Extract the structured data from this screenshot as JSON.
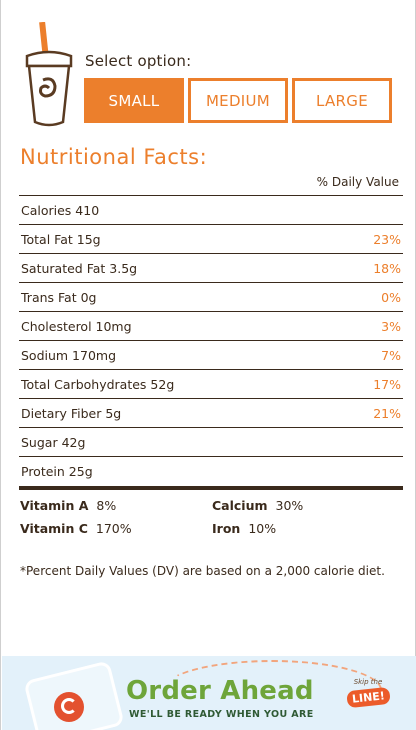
{
  "selector": {
    "label": "Select option:",
    "options": [
      "SMALL",
      "MEDIUM",
      "LARGE"
    ],
    "selected": "SMALL"
  },
  "nutrition": {
    "title": "Nutritional Facts:",
    "dv_header": "% Daily Value",
    "rows": [
      {
        "name": "Calories 410",
        "pct": ""
      },
      {
        "name": "Total Fat 15g",
        "pct": "23%"
      },
      {
        "name": "Saturated Fat 3.5g",
        "pct": "18%"
      },
      {
        "name": "Trans Fat 0g",
        "pct": "0%"
      },
      {
        "name": "Cholesterol 10mg",
        "pct": "3%"
      },
      {
        "name": "Sodium 170mg",
        "pct": "7%"
      },
      {
        "name": "Total Carbohydrates 52g",
        "pct": "17%"
      },
      {
        "name": "Dietary Fiber 5g",
        "pct": "21%"
      },
      {
        "name": "Sugar 42g",
        "pct": ""
      },
      {
        "name": "Protein 25g",
        "pct": ""
      }
    ],
    "vitamins": [
      {
        "label": "Vitamin A",
        "value": "8%"
      },
      {
        "label": "Calcium",
        "value": "30%"
      },
      {
        "label": "Vitamin C",
        "value": "170%"
      },
      {
        "label": "Iron",
        "value": "10%"
      }
    ],
    "footnote": "*Percent Daily Values (DV) are based on a 2,000 calorie diet."
  },
  "banner": {
    "title": "Order Ahead",
    "subtitle": "WE'LL BE READY WHEN YOU ARE",
    "skip_small": "Skip the",
    "skip_big": "LINE!"
  },
  "colors": {
    "accent": "#ec7f2c",
    "text": "#3a2a1c",
    "banner_bg": "#e3f1fa",
    "banner_title": "#6ea53a"
  },
  "icons": {
    "cup": "smoothie-cup-icon"
  }
}
